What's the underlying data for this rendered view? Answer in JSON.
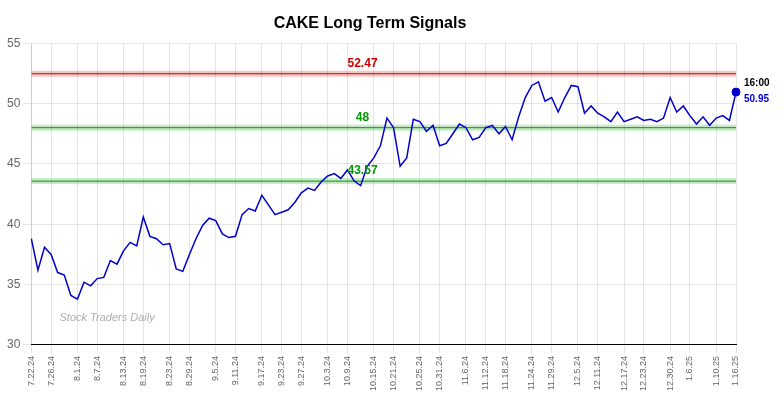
{
  "chart_data": {
    "type": "line",
    "title": "CAKE Long Term Signals",
    "categories": [
      "7.22.24",
      null,
      null,
      "7.26.24",
      null,
      null,
      null,
      "8.1.24",
      null,
      null,
      "8.7.24",
      null,
      null,
      null,
      "8.13.24",
      null,
      null,
      "8.19.24",
      null,
      null,
      null,
      "8.23.24",
      null,
      null,
      "8.29.24",
      null,
      null,
      null,
      "9.5.24",
      null,
      null,
      "9.11.24",
      null,
      null,
      null,
      "9.17.24",
      null,
      null,
      "9.23.24",
      null,
      null,
      "9.27.24",
      null,
      null,
      null,
      "10.3.24",
      null,
      null,
      "10.9.24",
      null,
      null,
      null,
      "10.15.24",
      null,
      null,
      "10.21.24",
      null,
      null,
      null,
      "10.25.24",
      null,
      null,
      "10.31.24",
      null,
      null,
      null,
      "11.6.24",
      null,
      null,
      "11.12.24",
      null,
      null,
      "11.18.24",
      null,
      null,
      null,
      "11.24.24",
      null,
      null,
      "11.29.24",
      null,
      null,
      null,
      "12.5.24",
      null,
      null,
      "12.11.24",
      null,
      null,
      null,
      "12.17.24",
      null,
      null,
      "12.23.24",
      null,
      null,
      null,
      "12.30.24",
      null,
      null,
      "1.6.25",
      null,
      null,
      null,
      "1.10.25",
      null,
      null,
      "1.16.25"
    ],
    "values": [
      38.8,
      36.2,
      38.1,
      37.5,
      36.0,
      35.8,
      34.1,
      33.8,
      35.2,
      34.9,
      35.5,
      35.6,
      37.0,
      36.7,
      37.8,
      38.5,
      38.2,
      40.6,
      39.0,
      38.8,
      38.3,
      38.4,
      36.3,
      36.1,
      37.5,
      38.8,
      39.9,
      40.5,
      40.3,
      39.2,
      38.9,
      39.0,
      40.8,
      41.3,
      41.1,
      42.4,
      41.6,
      40.8,
      41.0,
      41.2,
      41.8,
      42.6,
      43.0,
      42.8,
      43.5,
      44.0,
      44.2,
      43.8,
      44.5,
      43.6,
      43.2,
      44.8,
      45.5,
      46.5,
      48.8,
      48.0,
      44.8,
      45.5,
      48.7,
      48.5,
      47.7,
      48.2,
      46.5,
      46.7,
      47.5,
      48.3,
      48.0,
      47.0,
      47.2,
      48.0,
      48.2,
      47.5,
      48.1,
      47.0,
      48.9,
      50.5,
      51.5,
      51.8,
      50.2,
      50.5,
      49.3,
      50.5,
      51.5,
      51.4,
      49.2,
      49.8,
      49.2,
      48.9,
      48.5,
      49.3,
      48.5,
      48.7,
      48.9,
      48.6,
      48.7,
      48.5,
      48.8,
      50.5,
      49.3,
      49.8,
      49.0,
      48.3,
      48.9,
      48.2,
      48.8,
      49.0,
      48.6,
      50.95
    ],
    "color": "#0000cc",
    "ylim": [
      30,
      55
    ],
    "yticks": [
      30,
      35,
      40,
      45,
      50,
      55
    ],
    "grid": true,
    "hlines": [
      {
        "value": 52.47,
        "label": "52.47",
        "color": "#cc0000"
      },
      {
        "value": 48,
        "label": "48",
        "color": "#009900"
      },
      {
        "value": 43.57,
        "label": "43.57",
        "color": "#009900"
      }
    ],
    "last_point": {
      "time": "16:00",
      "value": 50.95,
      "label": "50.95"
    },
    "watermark": "Stock Traders Daily"
  }
}
